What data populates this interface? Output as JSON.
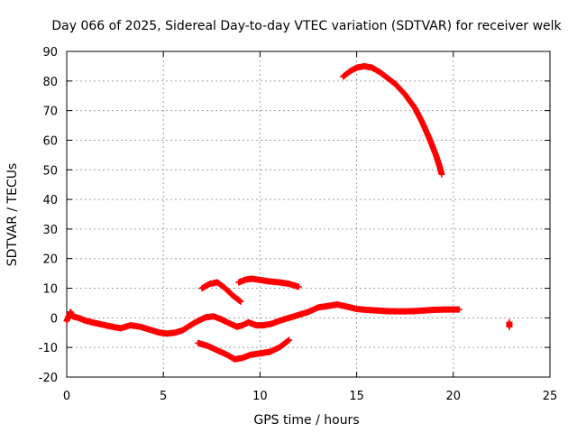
{
  "chart_data": {
    "type": "scatter",
    "title": "Day 066 of 2025, Sidereal Day-to-day VTEC variation (SDTVAR) for receiver welk",
    "xlabel": "GPS time / hours",
    "ylabel": "SDTVAR / TECUs",
    "xlim": [
      0,
      25
    ],
    "ylim": [
      -20,
      90
    ],
    "xticks": [
      "0",
      "5",
      "10",
      "15",
      "20",
      "25"
    ],
    "yticks": [
      "-20",
      "-10",
      "0",
      "10",
      "20",
      "30",
      "40",
      "50",
      "60",
      "70",
      "80",
      "90"
    ],
    "grid": true,
    "marker": "+",
    "series": [
      {
        "name": "main-track",
        "color": "#ff0000",
        "x": [
          0.0,
          0.2,
          0.3,
          0.6,
          1.0,
          1.5,
          2.0,
          2.5,
          2.8,
          3.3,
          3.8,
          4.3,
          4.8,
          5.2,
          5.6,
          6.0,
          6.4,
          6.8,
          7.2,
          7.6,
          8.0,
          8.4,
          8.8,
          9.1,
          9.4,
          9.8,
          10.2,
          10.6,
          11.0,
          11.5,
          12.0,
          12.5,
          13.0,
          13.5,
          14.0,
          14.5,
          15.0,
          15.5,
          16.0,
          16.5,
          17.0,
          17.5,
          18.0,
          18.5,
          19.0,
          19.5,
          20.0,
          20.3
        ],
        "y": [
          -1.0,
          2.0,
          0.5,
          0.0,
          -1.0,
          -1.8,
          -2.5,
          -3.2,
          -3.5,
          -2.5,
          -3.0,
          -4.0,
          -5.0,
          -5.3,
          -5.0,
          -4.2,
          -2.5,
          -1.0,
          0.2,
          0.5,
          -0.5,
          -1.8,
          -3.0,
          -2.5,
          -1.5,
          -2.5,
          -2.5,
          -2.0,
          -1.0,
          0.0,
          1.0,
          2.0,
          3.5,
          4.0,
          4.5,
          3.8,
          3.0,
          2.7,
          2.5,
          2.3,
          2.2,
          2.2,
          2.3,
          2.5,
          2.7,
          2.8,
          2.8,
          2.8
        ]
      },
      {
        "name": "upper-arc",
        "color": "#ff0000",
        "x": [
          14.3,
          14.7,
          15.0,
          15.4,
          15.8,
          16.2,
          16.6,
          17.0,
          17.5,
          18.0,
          18.4,
          18.8,
          19.1,
          19.3,
          19.4
        ],
        "y": [
          81.5,
          83.5,
          84.5,
          85.0,
          84.5,
          83.0,
          81.0,
          79.0,
          75.5,
          71.0,
          66.0,
          60.0,
          55.0,
          51.0,
          48.5
        ]
      },
      {
        "name": "secondary-upper",
        "color": "#ff0000",
        "x": [
          7.0,
          7.4,
          7.8,
          8.2,
          8.6,
          9.0
        ],
        "y": [
          10.0,
          11.5,
          12.0,
          10.0,
          7.5,
          5.5
        ]
      },
      {
        "name": "tertiary-upper",
        "color": "#ff0000",
        "x": [
          8.9,
          9.3,
          9.6,
          10.0,
          10.5,
          11.0,
          11.5,
          12.0
        ],
        "y": [
          12.0,
          13.0,
          13.2,
          12.8,
          12.3,
          12.0,
          11.5,
          10.5
        ]
      },
      {
        "name": "lower-arc",
        "color": "#ff0000",
        "x": [
          6.8,
          7.3,
          7.8,
          8.3,
          8.7,
          9.1,
          9.5,
          10.0,
          10.5,
          11.0,
          11.3,
          11.5
        ],
        "y": [
          -8.5,
          -9.5,
          -11.0,
          -12.5,
          -14.0,
          -13.5,
          -12.5,
          -12.0,
          -11.5,
          -10.0,
          -8.5,
          -7.5
        ]
      },
      {
        "name": "isolated",
        "color": "#ff0000",
        "x": [
          22.9,
          22.9
        ],
        "y": [
          -1.5,
          -3.0
        ]
      }
    ]
  }
}
